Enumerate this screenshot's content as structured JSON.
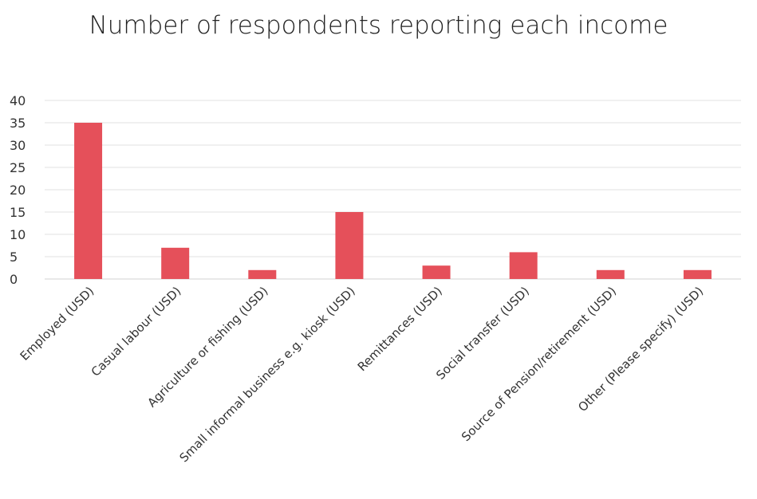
{
  "chart_data": {
    "type": "bar",
    "title": "Number of respondents reporting each income",
    "xlabel": "",
    "ylabel": "",
    "ylim": [
      0,
      40
    ],
    "yticks": [
      0,
      5,
      10,
      15,
      20,
      25,
      30,
      35,
      40
    ],
    "grid": true,
    "legend": "none",
    "bar_color": "#e5505a",
    "categories": [
      "Employed (USD)",
      "Casual labour (USD)",
      "Agriculture or fishing (USD)",
      "Small informal business e.g. kiosk (USD)",
      "Remittances (USD)",
      "Social transfer (USD)",
      "Source of Pension/retirement (USD)",
      "Other (Please specify) (USD)"
    ],
    "values": [
      35,
      7,
      2,
      15,
      3,
      6,
      2,
      2
    ]
  }
}
